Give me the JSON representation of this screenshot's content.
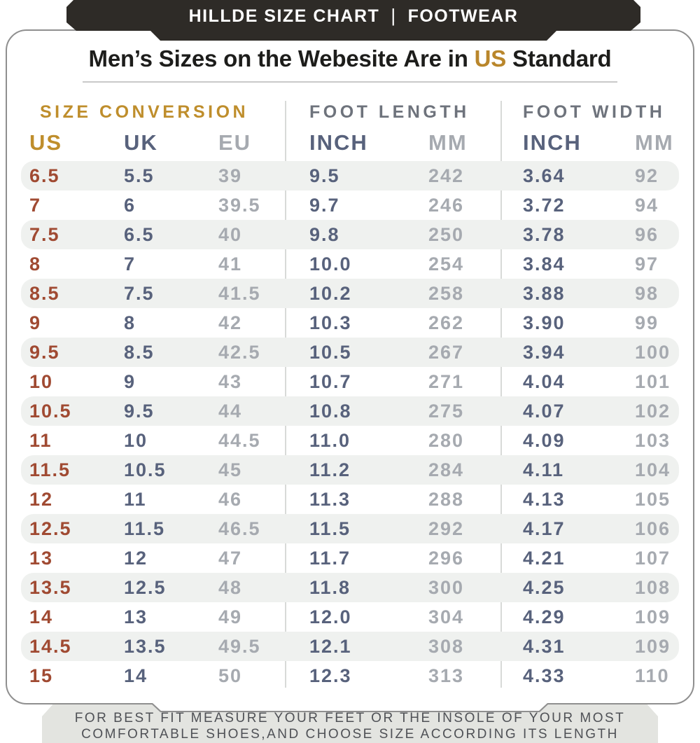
{
  "topbar": {
    "brand": "HILLDE SIZE CHART",
    "separator": "|",
    "category": "FOOTWEAR"
  },
  "title": {
    "prefix": "Men’s Sizes on the Webesite Are in ",
    "highlight": "US",
    "suffix": " Standard"
  },
  "chart_data": {
    "type": "table",
    "title": "Men's Sizes on the Webesite Are in US Standard",
    "sections": [
      {
        "label": "SIZE CONVERSION",
        "columns": [
          "US",
          "UK",
          "EU"
        ]
      },
      {
        "label": "FOOT LENGTH",
        "columns": [
          "INCH",
          "MM"
        ]
      },
      {
        "label": "FOOT WIDTH",
        "columns": [
          "INCH",
          "MM"
        ]
      }
    ],
    "columns": [
      "US",
      "UK",
      "EU",
      "INCH",
      "MM",
      "INCH",
      "MM"
    ],
    "column_keys": [
      "us",
      "uk",
      "eu",
      "length-inch",
      "length-mm",
      "width-inch",
      "width-mm"
    ],
    "rows": [
      [
        "6.5",
        "5.5",
        "39",
        "9.5",
        "242",
        "3.64",
        "92"
      ],
      [
        "7",
        "6",
        "39.5",
        "9.7",
        "246",
        "3.72",
        "94"
      ],
      [
        "7.5",
        "6.5",
        "40",
        "9.8",
        "250",
        "3.78",
        "96"
      ],
      [
        "8",
        "7",
        "41",
        "10.0",
        "254",
        "3.84",
        "97"
      ],
      [
        "8.5",
        "7.5",
        "41.5",
        "10.2",
        "258",
        "3.88",
        "98"
      ],
      [
        "9",
        "8",
        "42",
        "10.3",
        "262",
        "3.90",
        "99"
      ],
      [
        "9.5",
        "8.5",
        "42.5",
        "10.5",
        "267",
        "3.94",
        "100"
      ],
      [
        "10",
        "9",
        "43",
        "10.7",
        "271",
        "4.04",
        "101"
      ],
      [
        "10.5",
        "9.5",
        "44",
        "10.8",
        "275",
        "4.07",
        "102"
      ],
      [
        "11",
        "10",
        "44.5",
        "11.0",
        "280",
        "4.09",
        "103"
      ],
      [
        "11.5",
        "10.5",
        "45",
        "11.2",
        "284",
        "4.11",
        "104"
      ],
      [
        "12",
        "11",
        "46",
        "11.3",
        "288",
        "4.13",
        "105"
      ],
      [
        "12.5",
        "11.5",
        "46.5",
        "11.5",
        "292",
        "4.17",
        "106"
      ],
      [
        "13",
        "12",
        "47",
        "11.7",
        "296",
        "4.21",
        "107"
      ],
      [
        "13.5",
        "12.5",
        "48",
        "11.8",
        "300",
        "4.25",
        "108"
      ],
      [
        "14",
        "13",
        "49",
        "12.0",
        "304",
        "4.29",
        "109"
      ],
      [
        "14.5",
        "13.5",
        "49.5",
        "12.1",
        "308",
        "4.31",
        "109"
      ],
      [
        "15",
        "14",
        "50",
        "12.3",
        "313",
        "4.33",
        "110"
      ]
    ]
  },
  "footer": {
    "lines": [
      "FOR BEST FIT MEASURE YOUR FEET OR THE INSOLE OF YOUR MOST",
      "COMFORTABLE SHOES,AND CHOOSE SIZE ACCORDING ITS LENGTH"
    ]
  },
  "colors": {
    "topbar_bg": "#2e2b27",
    "accent_gold": "#bf8e2c",
    "us_value": "#a04a32",
    "slate_blue": "#58627c",
    "muted_gray": "#a6aab0",
    "section_gray": "#6e737c",
    "row_stripe": "#eff1ef",
    "footer_bg": "#e3e4e0"
  }
}
